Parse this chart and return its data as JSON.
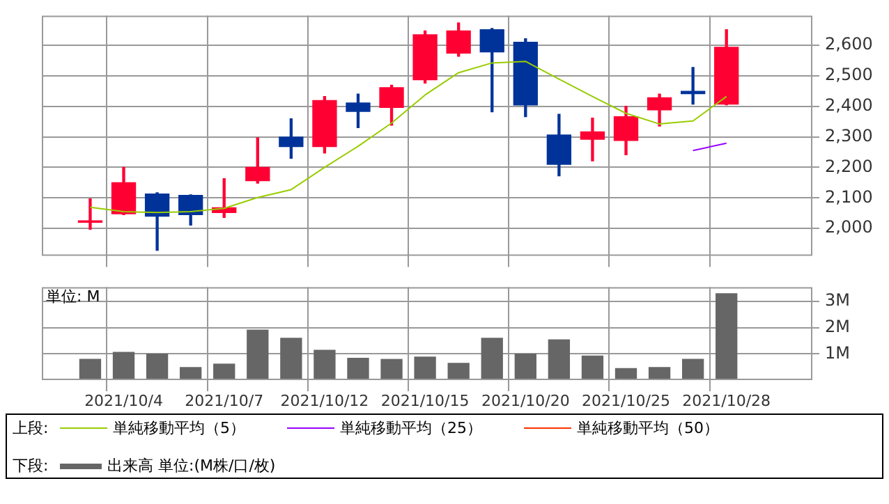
{
  "chart_data": [
    {
      "type": "candlestick",
      "categories": [
        null,
        "2021/10/4",
        null,
        null,
        "2021/10/7",
        null,
        null,
        "2021/10/12",
        null,
        null,
        "2021/10/15",
        null,
        null,
        "2021/10/20",
        null,
        null,
        "2021/10/25",
        null,
        null,
        "2021/10/28"
      ],
      "ohlc": [
        [
          2020,
          2097,
          1997,
          2025
        ],
        [
          2048,
          2200,
          2045,
          2150
        ],
        [
          2113,
          2117,
          1928,
          2040
        ],
        [
          2108,
          2110,
          2011,
          2045
        ],
        [
          2052,
          2163,
          2036,
          2068
        ],
        [
          2156,
          2297,
          2148,
          2200
        ],
        [
          2299,
          2359,
          2230,
          2268
        ],
        [
          2268,
          2432,
          2247,
          2419
        ],
        [
          2411,
          2440,
          2330,
          2383
        ],
        [
          2396,
          2469,
          2338,
          2461
        ],
        [
          2487,
          2647,
          2476,
          2634
        ],
        [
          2574,
          2673,
          2564,
          2647
        ],
        [
          2651,
          2655,
          2382,
          2578
        ],
        [
          2610,
          2621,
          2366,
          2404
        ],
        [
          2306,
          2374,
          2172,
          2210
        ],
        [
          2292,
          2361,
          2221,
          2316
        ],
        [
          2288,
          2400,
          2241,
          2366
        ],
        [
          2388,
          2440,
          2335,
          2428
        ],
        [
          2449,
          2527,
          2407,
          2441
        ],
        [
          2407,
          2651,
          2405,
          2593
        ]
      ],
      "colors": [
        "#ff0033",
        "#ff0033",
        "#003399",
        "#003399",
        "#ff0033",
        "#ff0033",
        "#003399",
        "#ff0033",
        "#003399",
        "#ff0033",
        "#ff0033",
        "#ff0033",
        "#003399",
        "#003399",
        "#003399",
        "#ff0033",
        "#ff0033",
        "#ff0033",
        "#003399",
        "#ff0033"
      ],
      "series": [
        {
          "name": "単純移動平均（5）",
          "type": "line",
          "color": "#99cc00",
          "values": [
            2069,
            2055,
            2052,
            2055,
            2066,
            2101,
            2127,
            2200,
            2269,
            2345,
            2437,
            2510,
            2542,
            2547,
            2489,
            2432,
            2377,
            2342,
            2352,
            2432
          ]
        },
        {
          "name": "単純移動平均（25）",
          "type": "line",
          "color": "#9900ff",
          "values": [
            null,
            null,
            null,
            null,
            null,
            null,
            null,
            null,
            null,
            null,
            null,
            null,
            null,
            null,
            null,
            null,
            null,
            null,
            2255,
            2279
          ]
        },
        {
          "name": "単純移動平均（50）",
          "type": "line",
          "color": "#ff3300",
          "values": [
            null,
            null,
            null,
            null,
            null,
            null,
            null,
            null,
            null,
            null,
            null,
            null,
            null,
            null,
            null,
            null,
            null,
            null,
            null,
            null
          ]
        }
      ],
      "ylim": [
        1910,
        2697
      ],
      "yticks": [
        {
          "value": 2000,
          "label": "2,000"
        },
        {
          "value": 2100,
          "label": "2,100"
        },
        {
          "value": 2200,
          "label": "2,200"
        },
        {
          "value": 2300,
          "label": "2,300"
        },
        {
          "value": 2400,
          "label": "2,400"
        },
        {
          "value": 2500,
          "label": "2,500"
        },
        {
          "value": 2600,
          "label": "2,600"
        }
      ],
      "grid": true,
      "tick_labels": "y",
      "marker": "none",
      "legend": "bottom",
      "legend_title": "上段:"
    },
    {
      "type": "bar",
      "categories": [
        null,
        "2021/10/4",
        null,
        null,
        "2021/10/7",
        null,
        null,
        "2021/10/12",
        null,
        null,
        "2021/10/15",
        null,
        null,
        "2021/10/20",
        null,
        null,
        "2021/10/25",
        null,
        null,
        "2021/10/28"
      ],
      "series": [
        {
          "name": "出来高 単位:(M株/口/枚)",
          "color": "#666666",
          "values": [
            0.79,
            1.06,
            0.99,
            0.48,
            0.61,
            1.91,
            1.6,
            1.14,
            0.83,
            0.79,
            0.88,
            0.64,
            1.6,
            0.99,
            1.54,
            0.92,
            0.44,
            0.48,
            0.79,
            3.3
          ]
        }
      ],
      "ylim": [
        0,
        3.55
      ],
      "yticks": [
        {
          "value": 1,
          "label": "1M"
        },
        {
          "value": 2,
          "label": "2M"
        },
        {
          "value": 3,
          "label": "3M"
        }
      ],
      "grid": true,
      "legend": "bottom",
      "legend_title": "下段:",
      "annotations": [
        "単位: M"
      ]
    }
  ]
}
